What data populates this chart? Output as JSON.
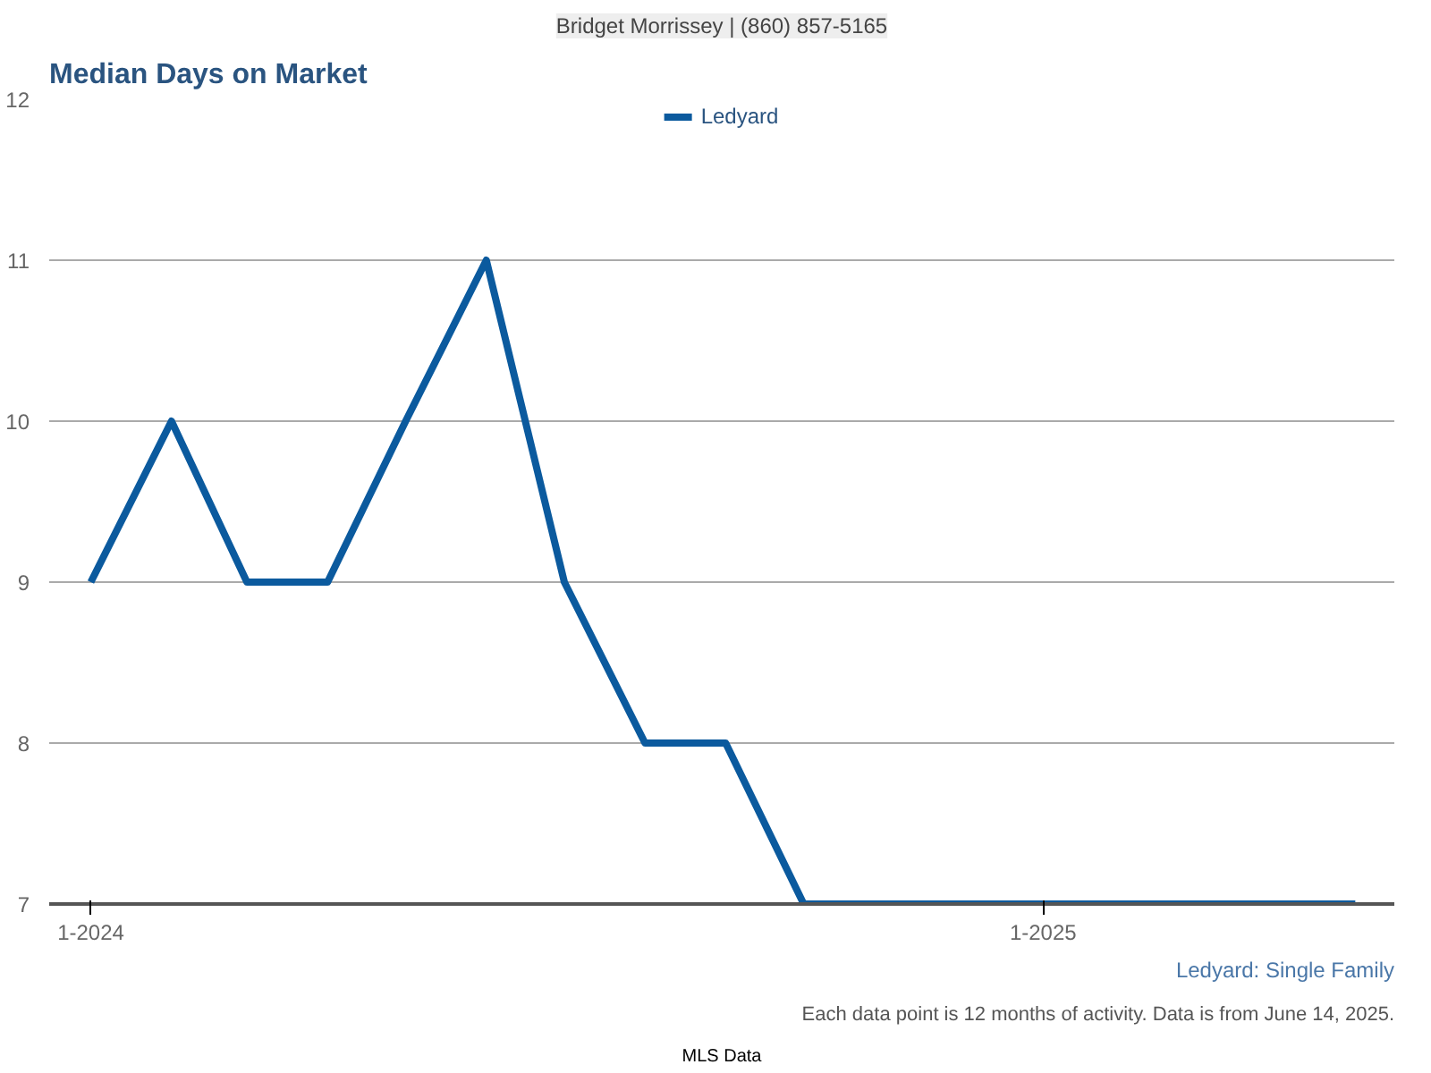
{
  "chart_data": {
    "type": "line",
    "title": "Median Days on Market",
    "subtitle": "Bridget Morrissey | (860) 857-5165",
    "x": [
      "2024-01",
      "2024-02",
      "2024-03",
      "2024-04",
      "2024-05",
      "2024-06",
      "2024-07",
      "2024-08",
      "2024-09",
      "2024-10",
      "2024-11",
      "2024-12",
      "2025-01",
      "2025-02",
      "2025-03",
      "2025-04",
      "2025-05"
    ],
    "series": [
      {
        "name": "Ledyard",
        "color": "#0b5a9e",
        "values": [
          9,
          10,
          9,
          9,
          10,
          11,
          9,
          8,
          8,
          7,
          7,
          7,
          7,
          7,
          7,
          7,
          7
        ]
      }
    ],
    "xlim": [
      "2023-12-16",
      "2025-05-16"
    ],
    "xticks": [
      {
        "value": "2024-01",
        "label": "1-2024"
      },
      {
        "value": "2025-01",
        "label": "1-2025"
      }
    ],
    "ylim": [
      7,
      12
    ],
    "yticks": [
      7,
      8,
      9,
      10,
      11,
      12
    ],
    "grid": "y",
    "legend": "top",
    "marker": "none",
    "line_style": "solid",
    "annotations": [
      "Ledyard: Single Family",
      "Each data point is 12 months of activity. Data is from June 14, 2025.",
      "MLS Data"
    ]
  }
}
